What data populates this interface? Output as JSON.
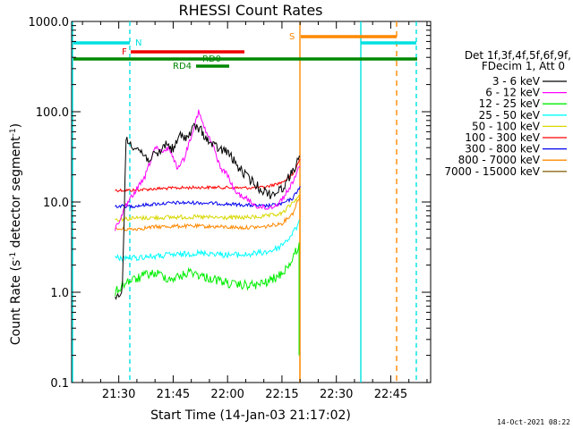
{
  "chart_data": {
    "type": "line",
    "title": "RHESSI Count Rates",
    "xlabel": "Start Time (14-Jan-03 21:17:02)",
    "ylabel_main": "Count Rate (s",
    "ylabel_sup": "-1",
    "ylabel_tail": " detector segment",
    "ylabel_sup2": "-1",
    "ylabel_end": ")",
    "y_scale": "log",
    "ylim": [
      0.1,
      1000.0
    ],
    "xlim": [
      "21:17",
      "22:56"
    ],
    "x_ticks": [
      {
        "t": "21:30",
        "label": "21:30"
      },
      {
        "t": "21:45",
        "label": "21:45"
      },
      {
        "t": "22:00",
        "label": "22:00"
      },
      {
        "t": "22:15",
        "label": "22:15"
      },
      {
        "t": "22:30",
        "label": "22:30"
      },
      {
        "t": "22:45",
        "label": "22:45"
      }
    ],
    "y_ticks": [
      {
        "v": 0.1,
        "label": "0.1"
      },
      {
        "v": 1.0,
        "label": "1.0"
      },
      {
        "v": 10.0,
        "label": "10.0"
      },
      {
        "v": 100.0,
        "label": "100.0"
      },
      {
        "v": 1000.0,
        "label": "1000.0"
      }
    ],
    "legend": {
      "header": [
        "Det 1f,3f,4f,5f,6f,9f,",
        "FDecim 1, Att 0"
      ],
      "placement": "right"
    },
    "series": [
      {
        "name": "3 - 6 keV",
        "color": "#000000",
        "points": [
          [
            "21:29",
            0.8
          ],
          [
            "21:31",
            1.1
          ],
          [
            "21:32",
            48
          ],
          [
            "21:35",
            40
          ],
          [
            "21:38",
            30
          ],
          [
            "21:41",
            34
          ],
          [
            "21:43",
            45
          ],
          [
            "21:45",
            38
          ],
          [
            "21:47",
            55
          ],
          [
            "21:49",
            52
          ],
          [
            "21:51",
            70
          ],
          [
            "21:53",
            60
          ],
          [
            "21:55",
            45
          ],
          [
            "21:58",
            38
          ],
          [
            "22:00",
            36
          ],
          [
            "22:03",
            24
          ],
          [
            "22:06",
            18
          ],
          [
            "22:09",
            14
          ],
          [
            "22:12",
            12
          ],
          [
            "22:15",
            14
          ],
          [
            "22:18",
            22
          ],
          [
            "22:20",
            32
          ]
        ]
      },
      {
        "name": "6 - 12 keV",
        "color": "#ff00ff",
        "points": [
          [
            "21:29",
            5
          ],
          [
            "21:32",
            9
          ],
          [
            "21:35",
            14
          ],
          [
            "21:37",
            18
          ],
          [
            "21:40",
            40
          ],
          [
            "21:42",
            35
          ],
          [
            "21:44",
            40
          ],
          [
            "21:46",
            24
          ],
          [
            "21:48",
            30
          ],
          [
            "21:50",
            55
          ],
          [
            "21:52",
            100
          ],
          [
            "21:54",
            60
          ],
          [
            "21:56",
            42
          ],
          [
            "21:58",
            24
          ],
          [
            "22:00",
            20
          ],
          [
            "22:02",
            13
          ],
          [
            "22:05",
            11
          ],
          [
            "22:08",
            9
          ],
          [
            "22:11",
            8.5
          ],
          [
            "22:14",
            9.5
          ],
          [
            "22:17",
            14
          ],
          [
            "22:20",
            25
          ]
        ]
      },
      {
        "name": "12 - 25 keV",
        "color": "#00ee00",
        "points": [
          [
            "21:29",
            1.0
          ],
          [
            "21:32",
            1.3
          ],
          [
            "21:35",
            1.4
          ],
          [
            "21:38",
            1.6
          ],
          [
            "21:41",
            1.6
          ],
          [
            "21:44",
            1.4
          ],
          [
            "21:47",
            1.5
          ],
          [
            "21:50",
            1.7
          ],
          [
            "21:53",
            1.5
          ],
          [
            "21:56",
            1.4
          ],
          [
            "21:59",
            1.3
          ],
          [
            "22:02",
            1.2
          ],
          [
            "22:05",
            1.2
          ],
          [
            "22:08",
            1.2
          ],
          [
            "22:11",
            1.3
          ],
          [
            "22:14",
            1.5
          ],
          [
            "22:17",
            2.0
          ],
          [
            "22:20",
            3.5
          ]
        ]
      },
      {
        "name": "25 - 50 keV",
        "color": "#00ffff",
        "points": [
          [
            "21:29",
            2.4
          ],
          [
            "21:32",
            2.4
          ],
          [
            "21:35",
            2.4
          ],
          [
            "21:38",
            2.5
          ],
          [
            "21:41",
            2.5
          ],
          [
            "21:44",
            2.6
          ],
          [
            "21:47",
            2.6
          ],
          [
            "21:50",
            2.7
          ],
          [
            "21:53",
            2.7
          ],
          [
            "21:56",
            2.7
          ],
          [
            "21:59",
            2.6
          ],
          [
            "22:02",
            2.6
          ],
          [
            "22:05",
            2.6
          ],
          [
            "22:08",
            2.7
          ],
          [
            "22:11",
            2.8
          ],
          [
            "22:14",
            3.1
          ],
          [
            "22:17",
            4.0
          ],
          [
            "22:20",
            6.0
          ]
        ]
      },
      {
        "name": "50 - 100 keV",
        "color": "#d8d800",
        "points": [
          [
            "21:29",
            6.4
          ],
          [
            "21:34",
            6.6
          ],
          [
            "21:40",
            6.7
          ],
          [
            "21:46",
            6.8
          ],
          [
            "21:52",
            6.8
          ],
          [
            "21:58",
            6.7
          ],
          [
            "22:04",
            6.7
          ],
          [
            "22:10",
            6.9
          ],
          [
            "22:15",
            7.4
          ],
          [
            "22:20",
            12.0
          ]
        ]
      },
      {
        "name": "100 - 300 keV",
        "color": "#ff0000",
        "points": [
          [
            "21:29",
            13.5
          ],
          [
            "21:34",
            13.5
          ],
          [
            "21:40",
            14
          ],
          [
            "21:46",
            14.3
          ],
          [
            "21:52",
            14.5
          ],
          [
            "21:58",
            14.5
          ],
          [
            "22:04",
            14.3
          ],
          [
            "22:10",
            14.5
          ],
          [
            "22:15",
            16.5
          ],
          [
            "22:18",
            20
          ],
          [
            "22:20",
            30
          ]
        ]
      },
      {
        "name": "300 - 800 keV",
        "color": "#0000ee",
        "points": [
          [
            "21:29",
            9.0
          ],
          [
            "21:34",
            9.0
          ],
          [
            "21:40",
            9.5
          ],
          [
            "21:46",
            9.8
          ],
          [
            "21:52",
            9.8
          ],
          [
            "21:58",
            9.6
          ],
          [
            "22:04",
            9.3
          ],
          [
            "22:10",
            9.0
          ],
          [
            "22:15",
            9.5
          ],
          [
            "22:18",
            11
          ],
          [
            "22:20",
            15
          ]
        ]
      },
      {
        "name": "800 - 7000 keV",
        "color": "#ff8800",
        "points": [
          [
            "21:29",
            5.0
          ],
          [
            "21:34",
            5.0
          ],
          [
            "21:40",
            5.3
          ],
          [
            "21:46",
            5.4
          ],
          [
            "21:52",
            5.4
          ],
          [
            "21:58",
            5.3
          ],
          [
            "22:04",
            5.2
          ],
          [
            "22:10",
            5.3
          ],
          [
            "22:15",
            5.8
          ],
          [
            "22:18",
            7.5
          ],
          [
            "22:20",
            12
          ]
        ]
      },
      {
        "name": "7000 - 15000 keV",
        "color": "#8b6914",
        "points": []
      }
    ],
    "annotations": {
      "N": {
        "label": "N",
        "color": "#00e0e0"
      },
      "F": {
        "label": "F",
        "color": "#ee0000"
      },
      "RD0": {
        "label": "RD0",
        "color": "#008800"
      },
      "RD4": {
        "label": "RD4",
        "color": "#008800"
      },
      "S": {
        "label": "S",
        "color": "#ff8800"
      }
    }
  },
  "footer_date": "14-Oct-2021 08:22"
}
